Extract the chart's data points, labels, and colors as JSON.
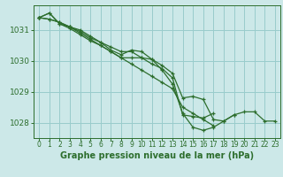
{
  "title": "Graphe pression niveau de la mer (hPa)",
  "background_color": "#cce8e8",
  "grid_color": "#99cccc",
  "line_color": "#2d6e2d",
  "marker_color": "#2d6e2d",
  "xlim": [
    -0.5,
    23.5
  ],
  "ylim": [
    1027.5,
    1031.8
  ],
  "yticks": [
    1028,
    1029,
    1030,
    1031
  ],
  "xticks": [
    0,
    1,
    2,
    3,
    4,
    5,
    6,
    7,
    8,
    9,
    10,
    11,
    12,
    13,
    14,
    15,
    16,
    17,
    18,
    19,
    20,
    21,
    22,
    23
  ],
  "series": [
    [
      1031.4,
      1031.55,
      1031.2,
      1031.1,
      1031.0,
      1030.8,
      1030.6,
      1030.35,
      1030.2,
      1030.35,
      1030.3,
      1030.05,
      1029.85,
      1029.6,
      1028.8,
      1028.85,
      1028.75,
      1028.1,
      1028.05,
      1028.25,
      1028.35,
      1028.35,
      1028.05,
      1028.05
    ],
    [
      1031.4,
      1031.55,
      1031.2,
      1031.05,
      1030.85,
      1030.65,
      1030.5,
      1030.3,
      1030.1,
      1030.1,
      1030.1,
      1030.05,
      1029.7,
      1029.25,
      1028.3,
      1027.85,
      1027.75,
      1027.85,
      1028.05,
      1028.25,
      null,
      null,
      null,
      null
    ],
    [
      1031.4,
      1031.35,
      1031.25,
      1031.1,
      1030.95,
      1030.75,
      1030.6,
      1030.45,
      1030.3,
      1030.3,
      1030.1,
      1029.9,
      1029.75,
      1029.45,
      1028.25,
      1028.2,
      1028.15,
      1028.3,
      null,
      null,
      null,
      null,
      null,
      null
    ],
    [
      1031.4,
      1031.35,
      1031.25,
      1031.1,
      1030.9,
      1030.7,
      1030.5,
      1030.3,
      1030.1,
      1029.9,
      1029.7,
      1029.5,
      1029.3,
      1029.1,
      1028.5,
      1028.3,
      1028.1,
      1027.9,
      null,
      null,
      null,
      null,
      null,
      null
    ]
  ],
  "xlabel_fontsize": 7,
  "ylabel_fontsize": 6.5,
  "xtick_fontsize": 5.5,
  "ytick_fontsize": 6.5
}
